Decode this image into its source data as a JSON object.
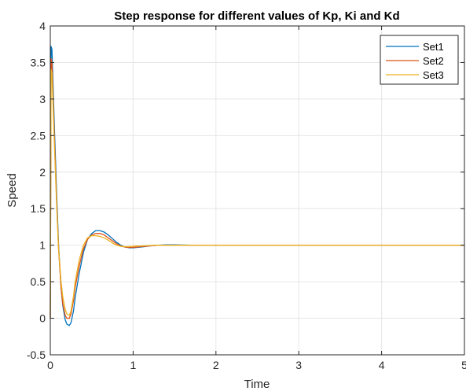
{
  "chart_data": {
    "type": "line",
    "title": "Step response for different values of Kp, Ki and Kd",
    "xlabel": "Time",
    "ylabel": "Speed",
    "xlim": [
      0,
      5
    ],
    "ylim": [
      -0.5,
      4
    ],
    "xticks": [
      0,
      1,
      2,
      3,
      4,
      5
    ],
    "xtick_labels": [
      "0",
      "1",
      "2",
      "3",
      "4",
      "5"
    ],
    "yticks": [
      -0.5,
      0,
      0.5,
      1,
      1.5,
      2,
      2.5,
      3,
      3.5,
      4
    ],
    "ytick_labels": [
      "-0.5",
      "0",
      "0.5",
      "1",
      "1.5",
      "2",
      "2.5",
      "3",
      "3.5",
      "4"
    ],
    "grid": true,
    "legend_position": "top-right",
    "series": [
      {
        "name": "Set1",
        "color": "#0072BD",
        "x": [
          0,
          0.01,
          0.02,
          0.05,
          0.08,
          0.1,
          0.13,
          0.15,
          0.18,
          0.2,
          0.23,
          0.25,
          0.28,
          0.3,
          0.35,
          0.4,
          0.45,
          0.5,
          0.55,
          0.6,
          0.65,
          0.7,
          0.75,
          0.8,
          0.85,
          0.9,
          0.95,
          1.0,
          1.05,
          1.1,
          1.2,
          1.3,
          1.4,
          1.5,
          1.7,
          2.0,
          2.5,
          3.0,
          3.5,
          4.0,
          4.5,
          5.0
        ],
        "y": [
          0,
          3.72,
          3.68,
          2.6,
          1.6,
          1.0,
          0.42,
          0.18,
          -0.02,
          -0.08,
          -0.1,
          -0.06,
          0.1,
          0.28,
          0.62,
          0.9,
          1.08,
          1.16,
          1.2,
          1.2,
          1.18,
          1.14,
          1.09,
          1.04,
          1.0,
          0.975,
          0.965,
          0.965,
          0.97,
          0.975,
          0.99,
          1.0,
          1.005,
          1.005,
          1.0,
          1.0,
          1.0,
          1.0,
          1.0,
          1.0,
          1.0,
          1.0
        ]
      },
      {
        "name": "Set2",
        "color": "#D95319",
        "x": [
          0,
          0.01,
          0.02,
          0.05,
          0.08,
          0.1,
          0.13,
          0.15,
          0.18,
          0.2,
          0.23,
          0.25,
          0.28,
          0.3,
          0.35,
          0.4,
          0.45,
          0.5,
          0.55,
          0.6,
          0.65,
          0.7,
          0.75,
          0.8,
          0.85,
          0.9,
          0.95,
          1.0,
          1.05,
          1.1,
          1.2,
          1.3,
          1.4,
          1.5,
          1.7,
          2.0,
          2.5,
          3.0,
          3.5,
          4.0,
          4.5,
          5.0
        ],
        "y": [
          0,
          3.55,
          3.5,
          2.45,
          1.5,
          0.95,
          0.42,
          0.2,
          0.04,
          0.0,
          0.0,
          0.06,
          0.24,
          0.42,
          0.72,
          0.95,
          1.08,
          1.14,
          1.16,
          1.16,
          1.14,
          1.1,
          1.06,
          1.02,
          0.99,
          0.975,
          0.97,
          0.97,
          0.975,
          0.98,
          0.99,
          1.0,
          1.0,
          1.0,
          1.0,
          1.0,
          1.0,
          1.0,
          1.0,
          1.0,
          1.0,
          1.0
        ]
      },
      {
        "name": "Set3",
        "color": "#EDB120",
        "x": [
          0,
          0.01,
          0.02,
          0.05,
          0.08,
          0.1,
          0.13,
          0.15,
          0.18,
          0.2,
          0.23,
          0.25,
          0.28,
          0.3,
          0.35,
          0.4,
          0.45,
          0.5,
          0.55,
          0.6,
          0.65,
          0.7,
          0.75,
          0.8,
          0.85,
          0.9,
          0.95,
          1.0,
          1.05,
          1.1,
          1.2,
          1.3,
          1.4,
          1.5,
          1.7,
          2.0,
          2.5,
          3.0,
          3.5,
          4.0,
          4.5,
          5.0
        ],
        "y": [
          0,
          3.4,
          3.35,
          2.35,
          1.45,
          0.95,
          0.5,
          0.3,
          0.12,
          0.06,
          0.04,
          0.1,
          0.3,
          0.5,
          0.8,
          1.0,
          1.1,
          1.13,
          1.13,
          1.12,
          1.1,
          1.07,
          1.03,
          1.0,
          0.985,
          0.98,
          0.98,
          0.985,
          0.99,
          0.99,
          0.995,
          1.0,
          1.0,
          1.0,
          1.0,
          1.0,
          1.0,
          1.0,
          1.0,
          1.0,
          1.0,
          1.0
        ]
      }
    ]
  }
}
